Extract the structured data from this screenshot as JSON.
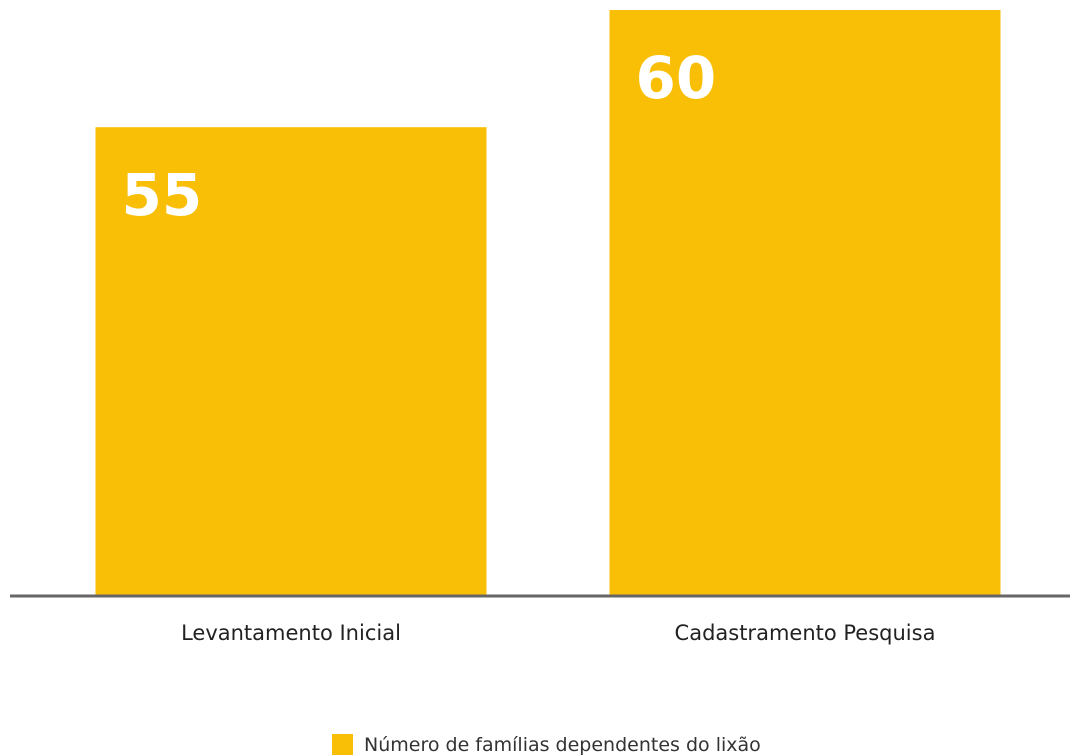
{
  "chart_data": {
    "type": "bar",
    "categories": [
      "Levantamento Inicial",
      "Cadastramento Pesquisa"
    ],
    "series": [
      {
        "name": "Número de famílias dependentes do lixão",
        "color": "#f9be06",
        "values": [
          55,
          60
        ]
      }
    ],
    "ylim": [
      35,
      60
    ]
  }
}
